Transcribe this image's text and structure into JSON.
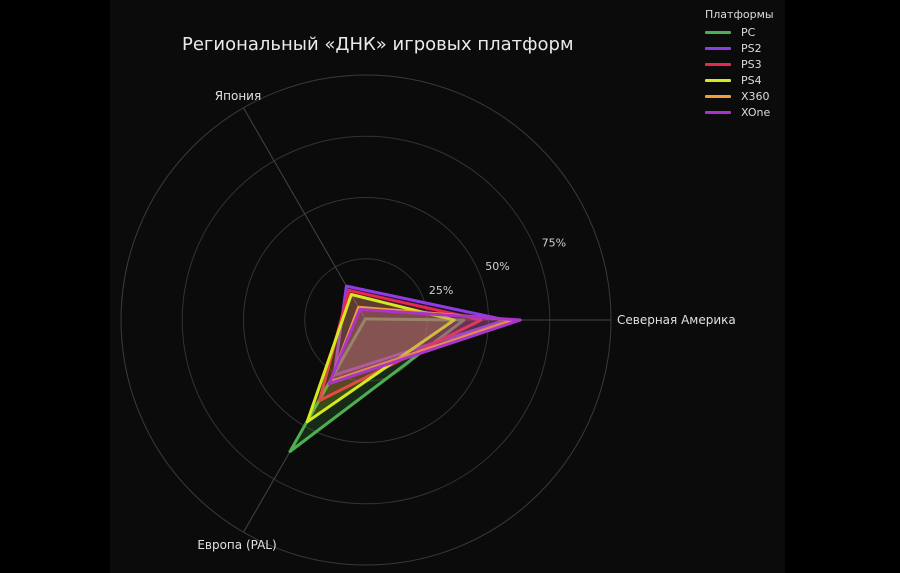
{
  "chart_data": {
    "type": "radar",
    "title": "Региональный «ДНК» игровых платформ",
    "axes": [
      "Северная Америка",
      "Япония",
      "Европа (PAL)"
    ],
    "radial_ticks": [
      25,
      50,
      75
    ],
    "radial_tick_labels": [
      "25%",
      "50%",
      "75%"
    ],
    "radial_range": [
      0,
      100
    ],
    "legend": {
      "title": "Платформы",
      "placement": "top-right"
    },
    "series": [
      {
        "name": "PC",
        "color": "#4caf50",
        "values": [
          40,
          0.5,
          62
        ]
      },
      {
        "name": "PS2",
        "color": "#8e3ce6",
        "values": [
          57,
          16,
          26
        ]
      },
      {
        "name": "PS3",
        "color": "#e8284f",
        "values": [
          47,
          14,
          38
        ]
      },
      {
        "name": "PS4",
        "color": "#d4ea1e",
        "values": [
          36,
          12,
          48
        ]
      },
      {
        "name": "X360",
        "color": "#f39c3c",
        "values": [
          60,
          6,
          29
        ]
      },
      {
        "name": "XOne",
        "color": "#a834c8",
        "values": [
          63,
          5,
          30
        ]
      }
    ]
  }
}
